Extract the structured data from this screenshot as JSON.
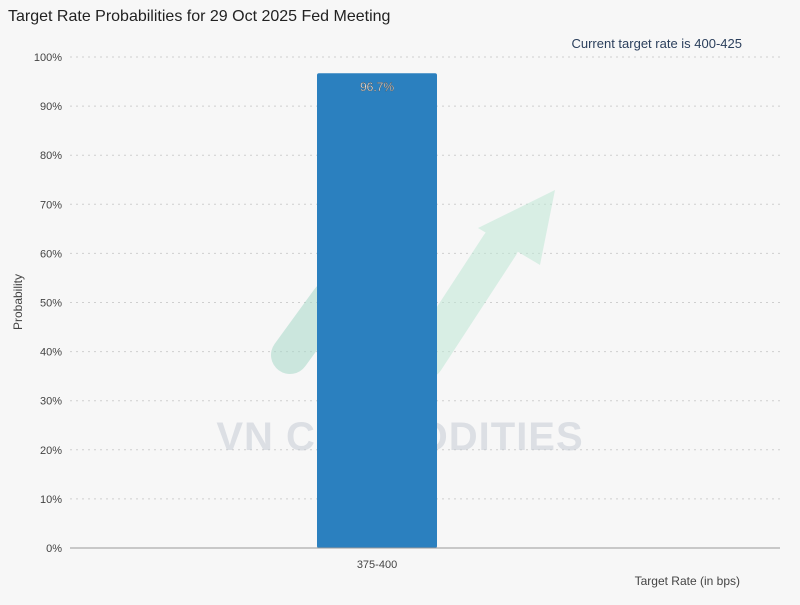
{
  "chart_data": {
    "type": "bar",
    "title": "Target Rate Probabilities for 29 Oct 2025 Fed Meeting",
    "subtitle": "Current target rate is 400-425",
    "categories": [
      "375-400"
    ],
    "values": [
      96.7
    ],
    "data_labels": [
      "96.7%"
    ],
    "ylabel": "Probability",
    "xlabel": "Target Rate (in bps)",
    "ylim": [
      0,
      100
    ],
    "yticks": [
      "0%",
      "10%",
      "20%",
      "30%",
      "40%",
      "50%",
      "60%",
      "70%",
      "80%",
      "90%",
      "100%"
    ],
    "grid": true,
    "colors": {
      "bar": "#2b80bf",
      "grid": "#cfcfcf"
    }
  },
  "watermark": {
    "text": "VN COMMODITIES"
  }
}
